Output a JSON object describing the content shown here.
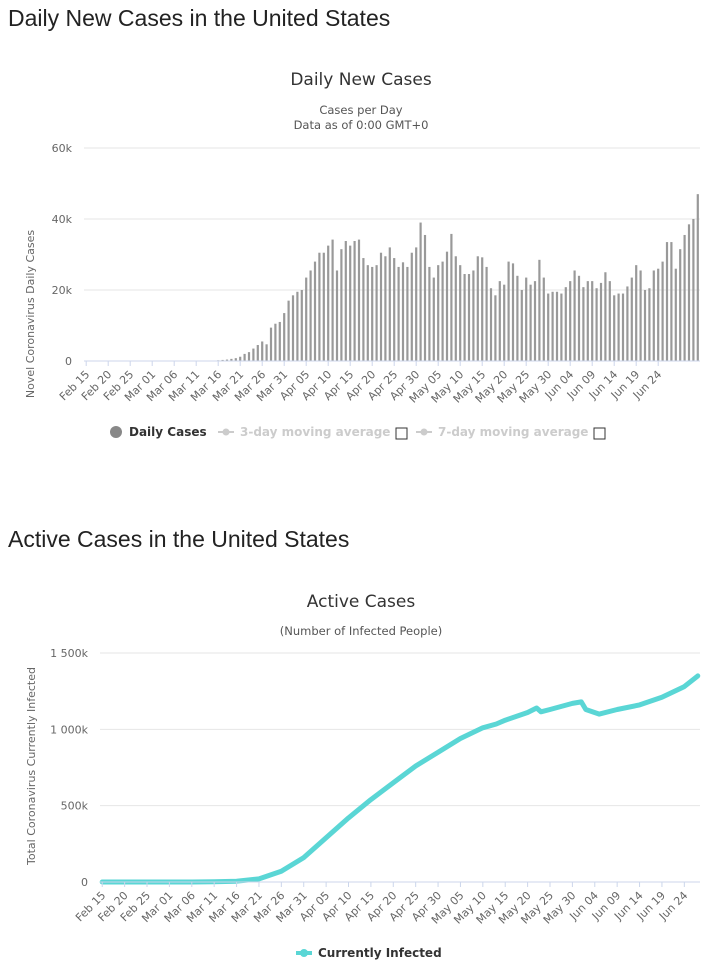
{
  "headings": {
    "daily": "Daily New Cases in the United States",
    "active": "Active Cases in the United States"
  },
  "chart_data": [
    {
      "type": "bar",
      "title": "Daily New Cases",
      "subtitle_lines": [
        "Cases per Day",
        "Data as of 0:00 GMT+0"
      ],
      "xlabel": "",
      "ylabel": "Novel Coronavirus Daily Cases",
      "ylim": [
        0,
        60000
      ],
      "y_ticks": [
        0,
        20000,
        40000,
        60000
      ],
      "y_tick_labels": [
        "0",
        "20k",
        "40k",
        "60k"
      ],
      "x_tick_labels": [
        "Feb 15",
        "Feb 20",
        "Feb 25",
        "Mar 01",
        "Mar 06",
        "Mar 11",
        "Mar 16",
        "Mar 21",
        "Mar 26",
        "Mar 31",
        "Apr 05",
        "Apr 10",
        "Apr 15",
        "Apr 20",
        "Apr 25",
        "Apr 30",
        "May 05",
        "May 10",
        "May 15",
        "May 20",
        "May 25",
        "May 30",
        "Jun 04",
        "Jun 09",
        "Jun 14",
        "Jun 19",
        "Jun 24"
      ],
      "first_date": "Feb 15",
      "last_date": "Jun 27",
      "color": "#999999",
      "legend": [
        {
          "name": "Daily Cases",
          "active": true,
          "color": "#888888"
        },
        {
          "name": "3-day moving average",
          "active": false,
          "color": "#cccccc"
        },
        {
          "name": "7-day moving average",
          "active": false,
          "color": "#cccccc"
        }
      ],
      "series": [
        {
          "name": "Daily Cases",
          "values": [
            0,
            0,
            0,
            0,
            0,
            0,
            0,
            0,
            0,
            0,
            0,
            0,
            0,
            0,
            0,
            0,
            0,
            0,
            0,
            0,
            0,
            0,
            0,
            0,
            0,
            0,
            0,
            0,
            0,
            100,
            200,
            300,
            400,
            600,
            800,
            1200,
            2000,
            2500,
            3500,
            4500,
            5500,
            4700,
            9400,
            10500,
            11000,
            13500,
            17000,
            18500,
            19500,
            20000,
            23500,
            25500,
            28000,
            30500,
            30500,
            32500,
            34200,
            25500,
            31500,
            33800,
            32500,
            33800,
            34200,
            29000,
            27000,
            26500,
            27000,
            30500,
            29500,
            32000,
            29000,
            26500,
            27800,
            26500,
            30500,
            32000,
            39000,
            35500,
            26500,
            23500,
            27000,
            28000,
            30800,
            35800,
            29500,
            27000,
            24500,
            24500,
            25500,
            29500,
            29200,
            26500,
            20500,
            18500,
            22500,
            21500,
            28000,
            27500,
            24000,
            20000,
            23500,
            21500,
            22500,
            28500,
            23500,
            19000,
            19500,
            19500,
            19000,
            20800,
            22500,
            25500,
            24000,
            20800,
            22500,
            22500,
            20500,
            22000,
            25000,
            22500,
            18500,
            19000,
            19000,
            21000,
            23500,
            27000,
            25500,
            20000,
            20500,
            25500,
            26000,
            28000,
            33500,
            33500,
            26000,
            31500,
            35500,
            38500,
            40000,
            47000
          ]
        }
      ]
    },
    {
      "type": "line",
      "title": "Active Cases",
      "subtitle": "(Number of Infected People)",
      "xlabel": "",
      "ylabel": "Total Coronavirus Currently Infected",
      "ylim": [
        0,
        1500000
      ],
      "y_ticks": [
        0,
        500000,
        1000000,
        1500000
      ],
      "y_tick_labels": [
        "0",
        "500k",
        "1 000k",
        "1 500k"
      ],
      "x_tick_labels": [
        "Feb 15",
        "Feb 20",
        "Feb 25",
        "Mar 01",
        "Mar 06",
        "Mar 11",
        "Mar 16",
        "Mar 21",
        "Mar 26",
        "Mar 31",
        "Apr 05",
        "Apr 10",
        "Apr 15",
        "Apr 20",
        "Apr 25",
        "Apr 30",
        "May 05",
        "May 10",
        "May 15",
        "May 20",
        "May 25",
        "May 30",
        "Jun 04",
        "Jun 09",
        "Jun 14",
        "Jun 19",
        "Jun 24"
      ],
      "first_date": "Feb 15",
      "last_date": "Jun 27",
      "color": "#5ad6d5",
      "legend": [
        {
          "name": "Currently Infected",
          "active": true,
          "color": "#5ad6d5"
        }
      ],
      "series": [
        {
          "name": "Currently Infected",
          "points": [
            [
              "Feb 15",
              0
            ],
            [
              "Mar 06",
              0
            ],
            [
              "Mar 11",
              2000
            ],
            [
              "Mar 16",
              5000
            ],
            [
              "Mar 21",
              20000
            ],
            [
              "Mar 26",
              70000
            ],
            [
              "Mar 31",
              160000
            ],
            [
              "Apr 05",
              290000
            ],
            [
              "Apr 10",
              420000
            ],
            [
              "Apr 15",
              540000
            ],
            [
              "Apr 20",
              650000
            ],
            [
              "Apr 25",
              760000
            ],
            [
              "Apr 30",
              850000
            ],
            [
              "May 05",
              940000
            ],
            [
              "May 10",
              1010000
            ],
            [
              "May 13",
              1035000
            ],
            [
              "May 15",
              1060000
            ],
            [
              "May 20",
              1110000
            ],
            [
              "May 22",
              1140000
            ],
            [
              "May 23",
              1115000
            ],
            [
              "May 25",
              1130000
            ],
            [
              "May 30",
              1170000
            ],
            [
              "Jun 01",
              1180000
            ],
            [
              "Jun 02",
              1130000
            ],
            [
              "Jun 05",
              1100000
            ],
            [
              "Jun 09",
              1130000
            ],
            [
              "Jun 14",
              1160000
            ],
            [
              "Jun 19",
              1210000
            ],
            [
              "Jun 24",
              1280000
            ],
            [
              "Jun 27",
              1350000
            ]
          ]
        }
      ]
    }
  ]
}
